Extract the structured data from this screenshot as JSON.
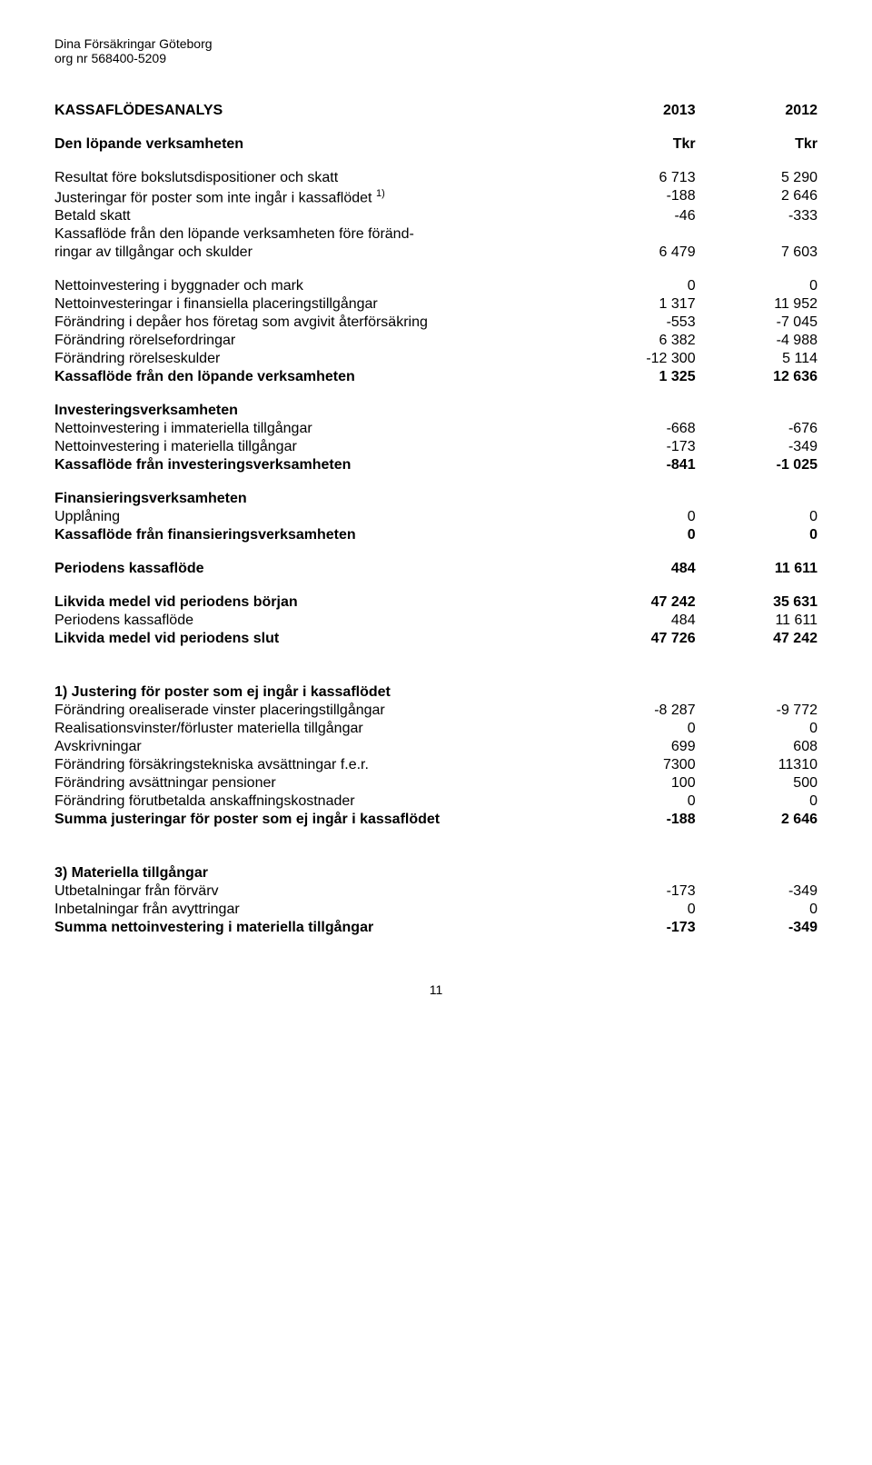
{
  "header": {
    "company": "Dina Försäkringar Göteborg",
    "org": "org nr 568400-5209"
  },
  "titleRow": {
    "label": "KASSAFLÖDESANALYS",
    "c1": "2013",
    "c2": "2012"
  },
  "subRow": {
    "label": "Den löpande verksamheten",
    "c1": "Tkr",
    "c2": "Tkr"
  },
  "sec1": {
    "r1": {
      "label": "Resultat före bokslutsdispositioner och skatt",
      "c1": "6 713",
      "c2": "5 290"
    },
    "r2": {
      "label_pre": "Justeringar för poster som inte ingår i kassaflödet ",
      "sup": "1)",
      "c1": "-188",
      "c2": "2 646"
    },
    "r3": {
      "label": "Betald skatt",
      "c1": "-46",
      "c2": "-333"
    },
    "r4a": {
      "label": "Kassaflöde från den löpande verksamheten före föränd-"
    },
    "r4b": {
      "label": "ringar av tillgångar och skulder",
      "c1": "6 479",
      "c2": "7 603"
    }
  },
  "sec2": {
    "r1": {
      "label": "Nettoinvestering i byggnader och mark",
      "c1": "0",
      "c2": "0"
    },
    "r2": {
      "label": "Nettoinvesteringar i finansiella placeringstillgångar",
      "c1": "1 317",
      "c2": "11 952"
    },
    "r3": {
      "label": "Förändring i depåer hos företag som avgivit återförsäkring",
      "c1": "-553",
      "c2": "-7 045"
    },
    "r4": {
      "label": "Förändring rörelsefordringar",
      "c1": "6 382",
      "c2": "-4 988"
    },
    "r5": {
      "label": "Förändring rörelseskulder",
      "c1": "-12 300",
      "c2": "5 114"
    },
    "r6": {
      "label": "Kassaflöde från den löpande verksamheten",
      "c1": "1 325",
      "c2": "12 636"
    }
  },
  "sec3": {
    "title": "Investeringsverksamheten",
    "r1": {
      "label": "Nettoinvestering i immateriella tillgångar",
      "c1": "-668",
      "c2": "-676"
    },
    "r2": {
      "label": "Nettoinvestering i materiella tillgångar",
      "c1": "-173",
      "c2": "-349"
    },
    "r3": {
      "label": "Kassaflöde från investeringsverksamheten",
      "c1": "-841",
      "c2": "-1 025"
    }
  },
  "sec4": {
    "title": "Finansieringsverksamheten",
    "r1": {
      "label": "Upplåning",
      "c1": "0",
      "c2": "0"
    },
    "r2": {
      "label": "Kassaflöde från finansieringsverksamheten",
      "c1": "0",
      "c2": "0"
    }
  },
  "sec5": {
    "r1": {
      "label": "Periodens kassaflöde",
      "c1": "484",
      "c2": "11 611"
    }
  },
  "sec6": {
    "r1": {
      "label": "Likvida medel vid periodens början",
      "c1": "47 242",
      "c2": "35 631"
    },
    "r2": {
      "label": "Periodens kassaflöde",
      "c1": "484",
      "c2": "11 611"
    },
    "r3": {
      "label": "Likvida medel vid periodens slut",
      "c1": "47 726",
      "c2": "47 242"
    }
  },
  "sec7": {
    "title": "1) Justering för poster som ej ingår i kassaflödet",
    "r1": {
      "label": "Förändring orealiserade vinster placeringstillgångar",
      "c1": "-8 287",
      "c2": "-9 772"
    },
    "r2": {
      "label": "Realisationsvinster/förluster materiella tillgångar",
      "c1": "0",
      "c2": "0"
    },
    "r3": {
      "label": "Avskrivningar",
      "c1": "699",
      "c2": "608"
    },
    "r4": {
      "label": "Förändring försäkringstekniska avsättningar f.e.r.",
      "c1": "7300",
      "c2": "11310"
    },
    "r5": {
      "label": "Förändring avsättningar pensioner",
      "c1": "100",
      "c2": "500"
    },
    "r6": {
      "label": "Förändring förutbetalda anskaffningskostnader",
      "c1": "0",
      "c2": "0"
    },
    "r7": {
      "label": "Summa justeringar för poster som ej ingår i kassaflödet",
      "c1": "-188",
      "c2": "2 646"
    }
  },
  "sec8": {
    "title": "3) Materiella tillgångar",
    "r1": {
      "label": "Utbetalningar från förvärv",
      "c1": "-173",
      "c2": "-349"
    },
    "r2": {
      "label": "Inbetalningar från avyttringar",
      "c1": "0",
      "c2": "0"
    },
    "r3": {
      "label": "Summa nettoinvestering i materiella tillgångar",
      "c1": "-173",
      "c2": "-349"
    }
  },
  "pageNumber": "11"
}
